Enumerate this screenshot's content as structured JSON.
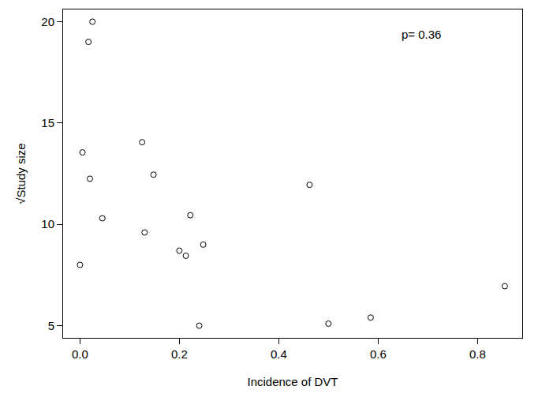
{
  "chart_data": {
    "type": "scatter",
    "x_label": "Incidence of DVT",
    "y_label": "√Study size",
    "annotation": "p= 0.36",
    "x": [
      0.025,
      0.017,
      0.005,
      0.02,
      0.045,
      0.0,
      0.125,
      0.148,
      0.13,
      0.222,
      0.2,
      0.213,
      0.248,
      0.24,
      0.462,
      0.5,
      0.585,
      0.855
    ],
    "values": [
      20.0,
      19.0,
      13.55,
      12.25,
      10.3,
      8.0,
      14.05,
      12.45,
      9.6,
      10.45,
      8.7,
      8.45,
      9.0,
      5.0,
      11.95,
      5.1,
      5.4,
      6.95
    ],
    "color": "#000000",
    "marker": "circle-open",
    "xlim": [
      -0.034,
      0.89
    ],
    "ylim": [
      4.4,
      20.6
    ],
    "xticks": [
      {
        "value": 0,
        "label": "0.0"
      },
      0.2,
      0.4,
      0.6,
      0.8
    ],
    "yticks": [
      5,
      10,
      15,
      20
    ],
    "grid": false
  }
}
